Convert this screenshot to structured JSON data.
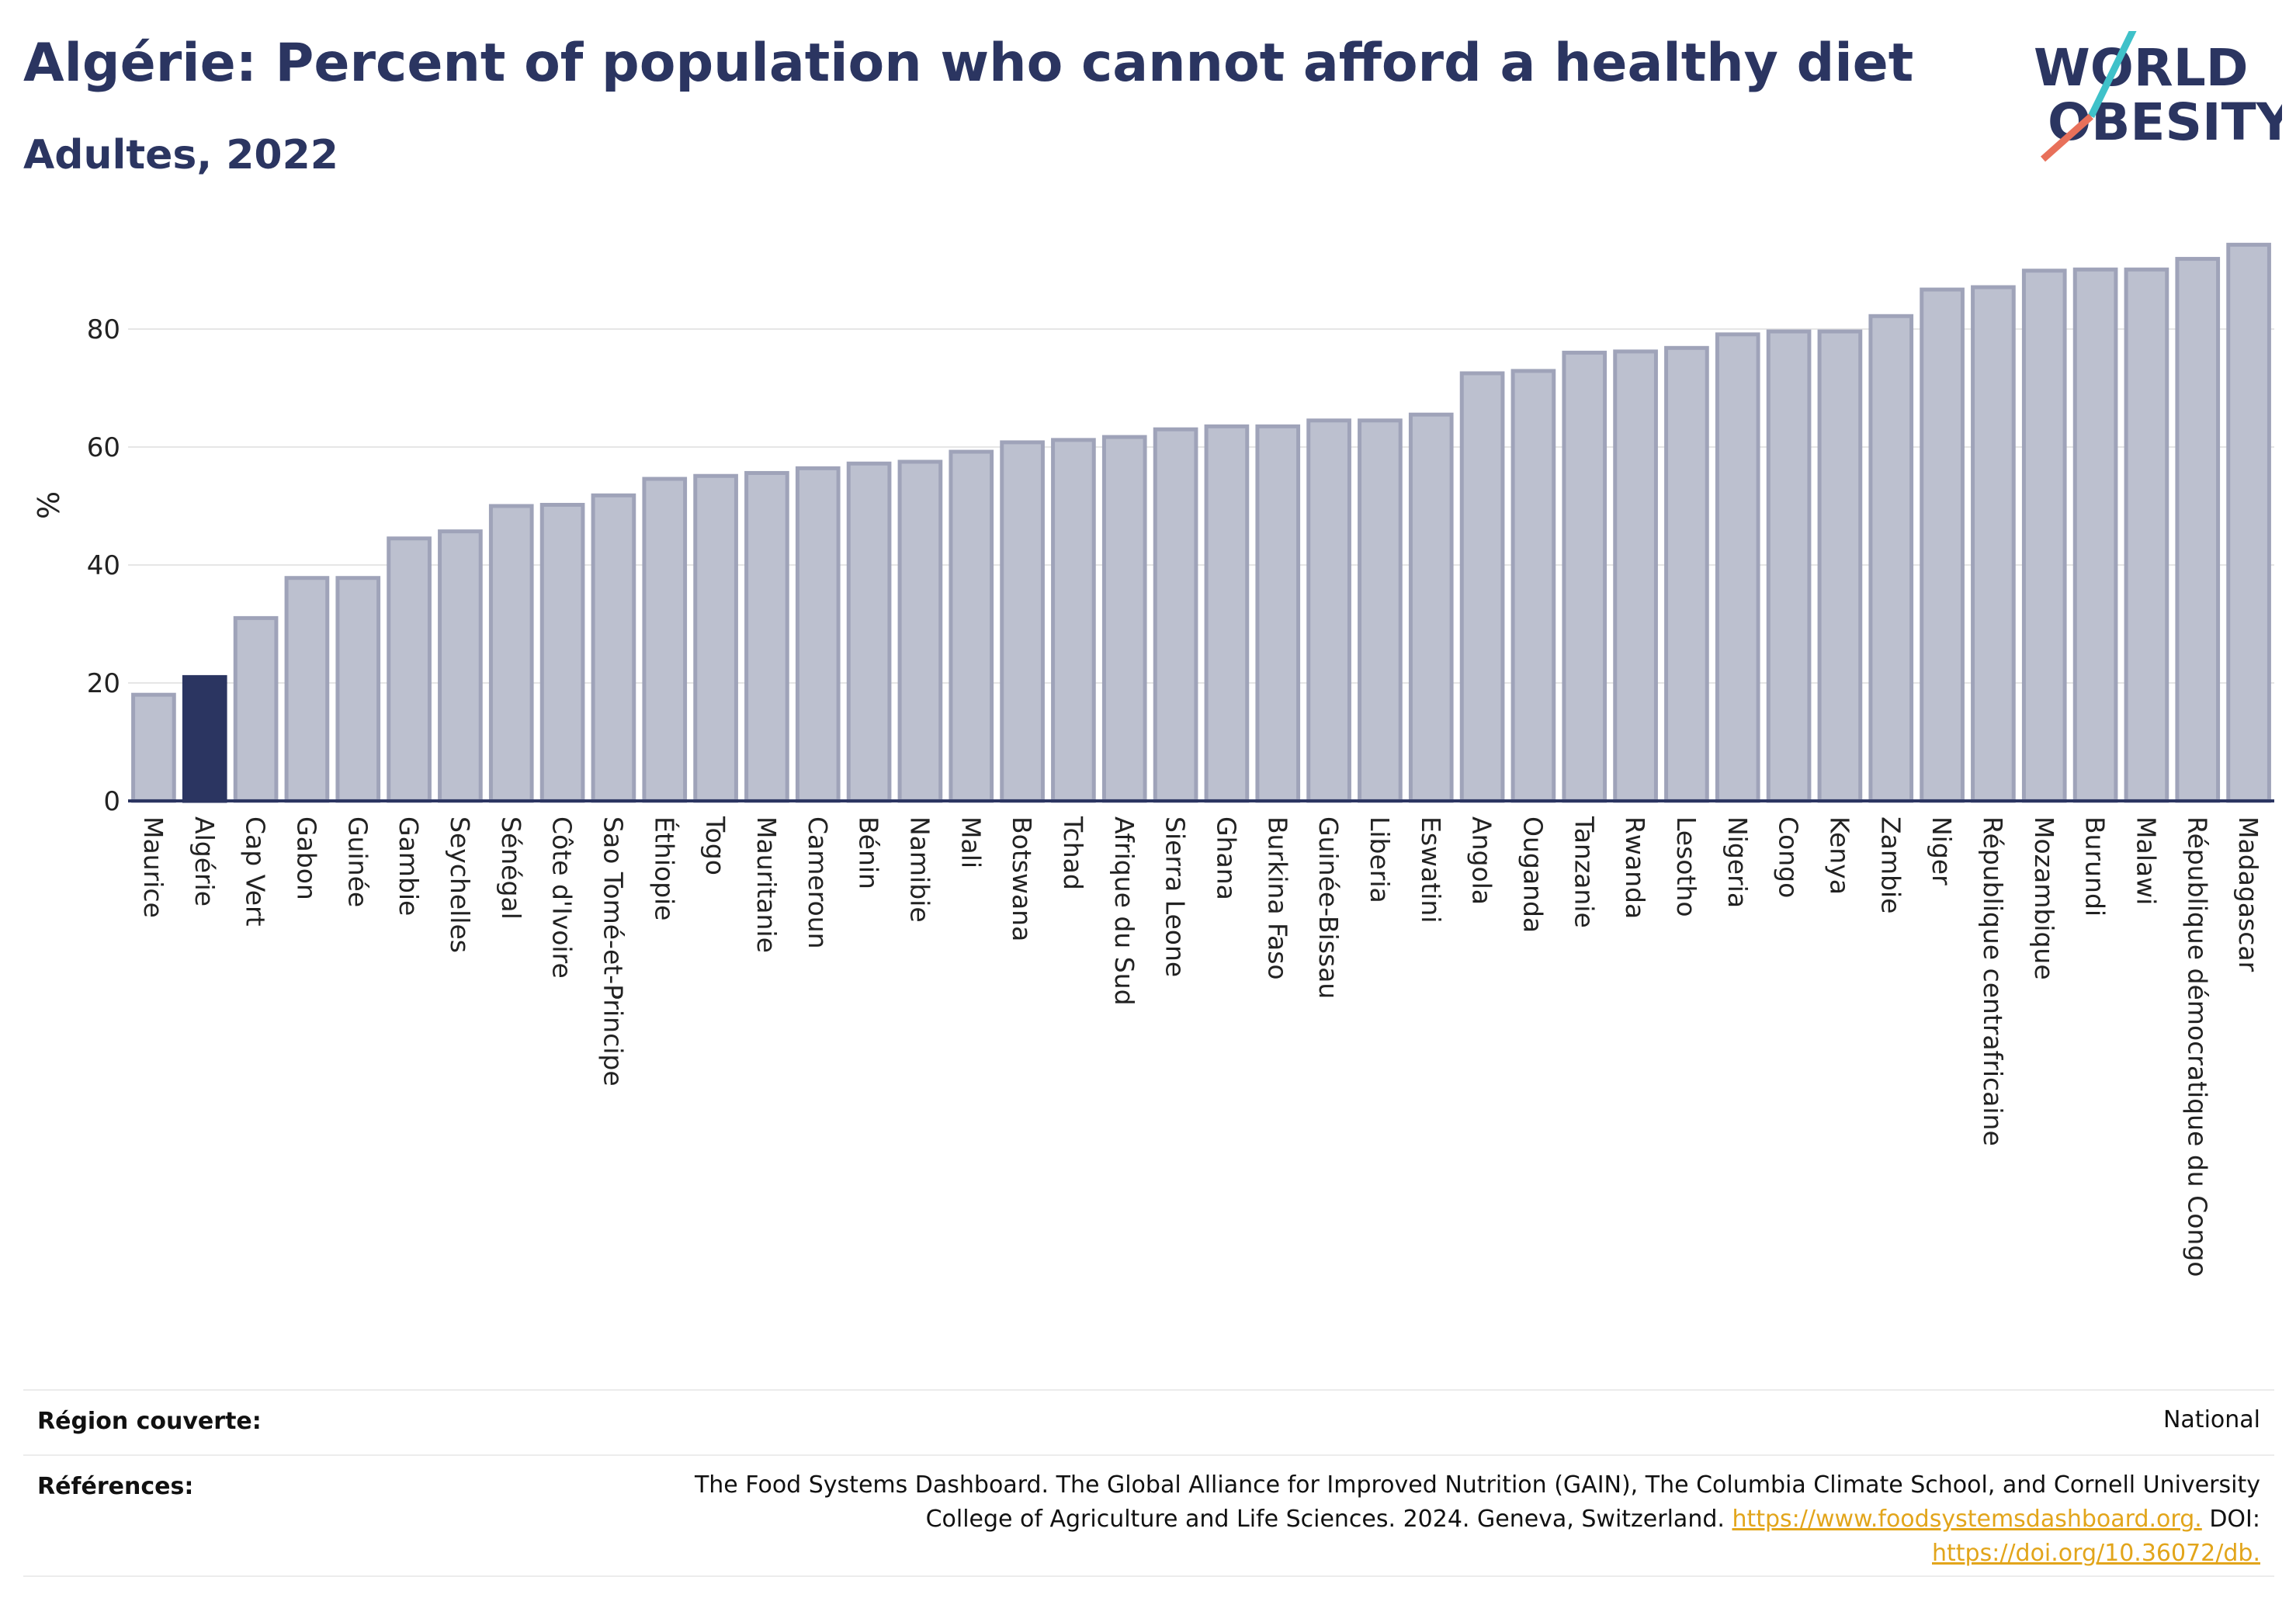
{
  "header": {
    "title": "Algérie: Percent of population who cannot afford a healthy diet",
    "subtitle": "Adultes, 2022"
  },
  "logo": {
    "line1": "WORLD",
    "line2": "OBESITY"
  },
  "chart_data": {
    "type": "bar",
    "ylabel": "%",
    "ylim": [
      0,
      95
    ],
    "yticks": [
      0,
      20,
      40,
      60,
      80
    ],
    "grid": true,
    "highlight": "Algérie",
    "colors": {
      "bar": "#bcc0cf",
      "bar_edge": "#9fa3b9",
      "highlight": "#2b3561",
      "axis": "#2b3561",
      "grid": "#e6e6e6"
    },
    "categories": [
      "Maurice",
      "Algérie",
      "Cap Vert",
      "Gabon",
      "Guinée",
      "Gambie",
      "Seychelles",
      "Sénégal",
      "Côte d'Ivoire",
      "Sao Tomé-et-Principe",
      "Éthiopie",
      "Togo",
      "Mauritanie",
      "Cameroun",
      "Bénin",
      "Namibie",
      "Mali",
      "Botswana",
      "Tchad",
      "Afrique du Sud",
      "Sierra Leone",
      "Ghana",
      "Burkina Faso",
      "Guinée-Bissau",
      "Liberia",
      "Eswatini",
      "Angola",
      "Ouganda",
      "Tanzanie",
      "Rwanda",
      "Lesotho",
      "Nigeria",
      "Congo",
      "Kenya",
      "Zambie",
      "Niger",
      "République centrafricaine",
      "Mozambique",
      "Burundi",
      "Malawi",
      "République démocratique du Congo",
      "Madagascar"
    ],
    "values": [
      18,
      21,
      31,
      37.8,
      37.8,
      44.5,
      45.7,
      50,
      50.2,
      51.8,
      54.6,
      55.1,
      55.6,
      56.4,
      57.2,
      57.5,
      59.2,
      60.8,
      61.2,
      61.7,
      63,
      63.5,
      63.5,
      64.5,
      64.5,
      65.5,
      72.5,
      72.9,
      76,
      76.2,
      76.8,
      79.1,
      79.6,
      79.6,
      82.2,
      86.7,
      87.1,
      89.9,
      90.1,
      90.1,
      91.9,
      94.3
    ]
  },
  "footer": {
    "region_label": "Région couverte:",
    "region_value": "National",
    "refs_label": "Références:",
    "refs_line1": "The Food Systems Dashboard. The Global Alliance for Improved Nutrition (GAIN), The Columbia Climate School, and Cornell University",
    "refs_line2_text": "College of Agriculture and Life Sciences. 2024. Geneva, Switzerland.",
    "refs_link1": "https://www.foodsystemsdashboard.org.",
    "refs_doi": "DOI:",
    "refs_link2": "https://doi.org/10.36072/db."
  }
}
